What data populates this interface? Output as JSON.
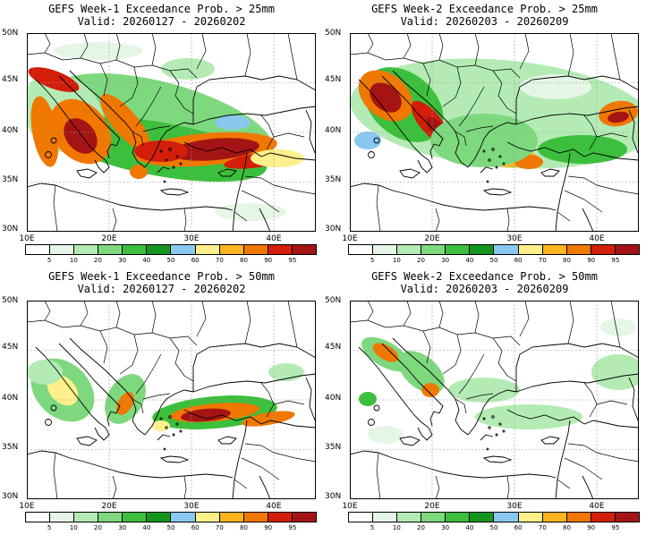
{
  "panels": [
    {
      "title": "GEFS Week-1 Exceedance Prob. > 25mm",
      "valid": "Valid: 20260127 - 20260202"
    },
    {
      "title": "GEFS Week-2 Exceedance Prob. > 25mm",
      "valid": "Valid: 20260203 - 20260209"
    },
    {
      "title": "GEFS Week-1 Exceedance Prob. > 50mm",
      "valid": "Valid: 20260127 - 20260202"
    },
    {
      "title": "GEFS Week-2 Exceedance Prob. > 50mm",
      "valid": "Valid: 20260203 - 20260209"
    }
  ],
  "axes": {
    "lat_labels": [
      "50N",
      "45N",
      "40N",
      "35N",
      "30N"
    ],
    "lon_labels": [
      "10E",
      "20E",
      "30E",
      "40E"
    ]
  },
  "colorbar": {
    "colors": [
      "#ffffff",
      "#e6f6e6",
      "#b4ebb4",
      "#7ed87e",
      "#3cbf3c",
      "#14961e",
      "#8ac8f0",
      "#fff08c",
      "#ffb41e",
      "#f07800",
      "#d21e0a",
      "#a51414"
    ],
    "ticks": [
      "5",
      "10",
      "20",
      "30",
      "40",
      "50",
      "60",
      "70",
      "80",
      "90",
      "95"
    ]
  }
}
